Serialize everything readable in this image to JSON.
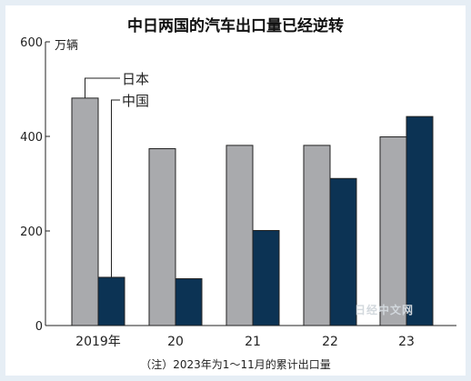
{
  "chart_data": {
    "type": "bar",
    "title": "中日两国的汽车出口量已经逆转",
    "unit": "万辆",
    "categories": [
      "2019年",
      "20",
      "21",
      "22",
      "23"
    ],
    "series": [
      {
        "name": "日本",
        "color": "#a9aaad",
        "values": [
          481,
          374,
          381,
          381,
          399
        ]
      },
      {
        "name": "中国",
        "color": "#0c3354",
        "values": [
          102,
          99,
          201,
          311,
          442
        ]
      }
    ],
    "ylim": [
      0,
      600
    ],
    "yticks": [
      0,
      200,
      400,
      600
    ],
    "legend_position": "top-left",
    "note": "（注）2023年为1～11月的累计出口量",
    "watermark": "日经中文网"
  }
}
